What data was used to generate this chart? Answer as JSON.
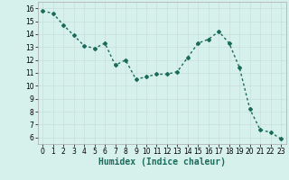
{
  "x": [
    0,
    1,
    2,
    3,
    4,
    5,
    6,
    7,
    8,
    9,
    10,
    11,
    12,
    13,
    14,
    15,
    16,
    17,
    18,
    19,
    20,
    21,
    22,
    23
  ],
  "y": [
    15.8,
    15.6,
    14.7,
    13.9,
    13.1,
    12.9,
    13.3,
    11.6,
    12.0,
    10.5,
    10.7,
    10.9,
    10.9,
    11.1,
    12.2,
    13.3,
    13.6,
    14.2,
    13.3,
    11.4,
    8.2,
    6.6,
    6.4,
    5.9
  ],
  "line_color": "#1a6b5a",
  "marker": "D",
  "marker_size": 2.0,
  "line_width": 1.0,
  "xlabel": "Humidex (Indice chaleur)",
  "ylim": [
    5.5,
    16.5
  ],
  "xlim": [
    -0.5,
    23.5
  ],
  "yticks": [
    6,
    7,
    8,
    9,
    10,
    11,
    12,
    13,
    14,
    15,
    16
  ],
  "xticks": [
    0,
    1,
    2,
    3,
    4,
    5,
    6,
    7,
    8,
    9,
    10,
    11,
    12,
    13,
    14,
    15,
    16,
    17,
    18,
    19,
    20,
    21,
    22,
    23
  ],
  "bg_color": "#d6f0ec",
  "grid_color": "#c8deda",
  "tick_label_fontsize": 5.5,
  "xlabel_fontsize": 7.0
}
